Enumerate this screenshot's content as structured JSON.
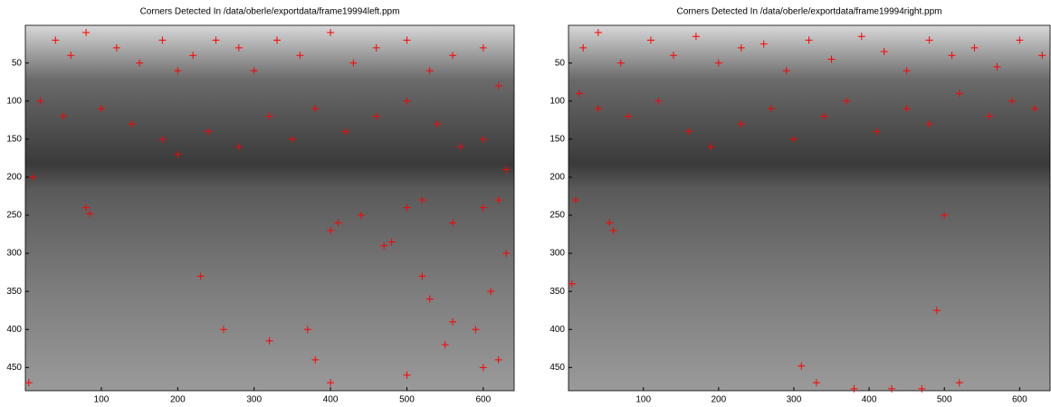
{
  "chart_data": [
    {
      "type": "scatter",
      "title": "Corners Detected In /data/oberle/exportdata/frame19994left.ppm",
      "xlim": [
        0.5,
        640.5
      ],
      "ylim": [
        480.5,
        0.5
      ],
      "xticks": [
        100,
        200,
        300,
        400,
        500,
        600
      ],
      "yticks": [
        50,
        100,
        150,
        200,
        250,
        300,
        350,
        400,
        450
      ],
      "marker": "+",
      "color": "#ff0000",
      "x": [
        40,
        60,
        80,
        120,
        150,
        180,
        200,
        220,
        250,
        280,
        300,
        330,
        360,
        400,
        430,
        460,
        500,
        530,
        560,
        600,
        620,
        20,
        50,
        100,
        140,
        180,
        200,
        240,
        280,
        320,
        350,
        380,
        420,
        460,
        500,
        540,
        570,
        600,
        630,
        10,
        80,
        85,
        230,
        400,
        410,
        440,
        470,
        480,
        500,
        520,
        560,
        600,
        620,
        630,
        610,
        520,
        530,
        560,
        590,
        370,
        380,
        320,
        260,
        400,
        500,
        550,
        600,
        620,
        5
      ],
      "y": [
        20,
        40,
        10,
        30,
        50,
        20,
        60,
        40,
        20,
        30,
        60,
        20,
        40,
        10,
        50,
        30,
        20,
        60,
        40,
        30,
        80,
        100,
        120,
        110,
        130,
        150,
        170,
        140,
        160,
        120,
        150,
        110,
        140,
        120,
        100,
        130,
        160,
        150,
        190,
        200,
        240,
        248,
        330,
        270,
        260,
        250,
        290,
        285,
        240,
        230,
        260,
        240,
        230,
        300,
        350,
        330,
        360,
        390,
        400,
        400,
        440,
        415,
        400,
        470,
        460,
        420,
        450,
        440,
        470
      ]
    },
    {
      "type": "scatter",
      "title": "Corners Detected In /data/oberle/exportdata/frame19994right.ppm",
      "xlim": [
        0.5,
        640.5
      ],
      "ylim": [
        480.5,
        0.5
      ],
      "xticks": [
        100,
        200,
        300,
        400,
        500,
        600
      ],
      "yticks": [
        50,
        100,
        150,
        200,
        250,
        300,
        350,
        400,
        450
      ],
      "marker": "+",
      "color": "#ff0000",
      "x": [
        20,
        40,
        70,
        110,
        140,
        170,
        200,
        230,
        260,
        290,
        320,
        350,
        390,
        420,
        450,
        480,
        510,
        540,
        570,
        600,
        630,
        15,
        40,
        80,
        120,
        160,
        190,
        230,
        270,
        300,
        340,
        370,
        410,
        450,
        480,
        520,
        560,
        590,
        620,
        10,
        55,
        60,
        500,
        490,
        310,
        520,
        430,
        470,
        5,
        330,
        380
      ],
      "y": [
        30,
        10,
        50,
        20,
        40,
        15,
        50,
        30,
        25,
        60,
        20,
        45,
        15,
        35,
        60,
        20,
        40,
        30,
        55,
        20,
        40,
        90,
        110,
        120,
        100,
        140,
        160,
        130,
        110,
        150,
        120,
        100,
        140,
        110,
        130,
        90,
        120,
        100,
        110,
        230,
        260,
        270,
        250,
        375,
        448,
        470,
        478,
        478,
        340,
        470,
        478
      ]
    }
  ]
}
